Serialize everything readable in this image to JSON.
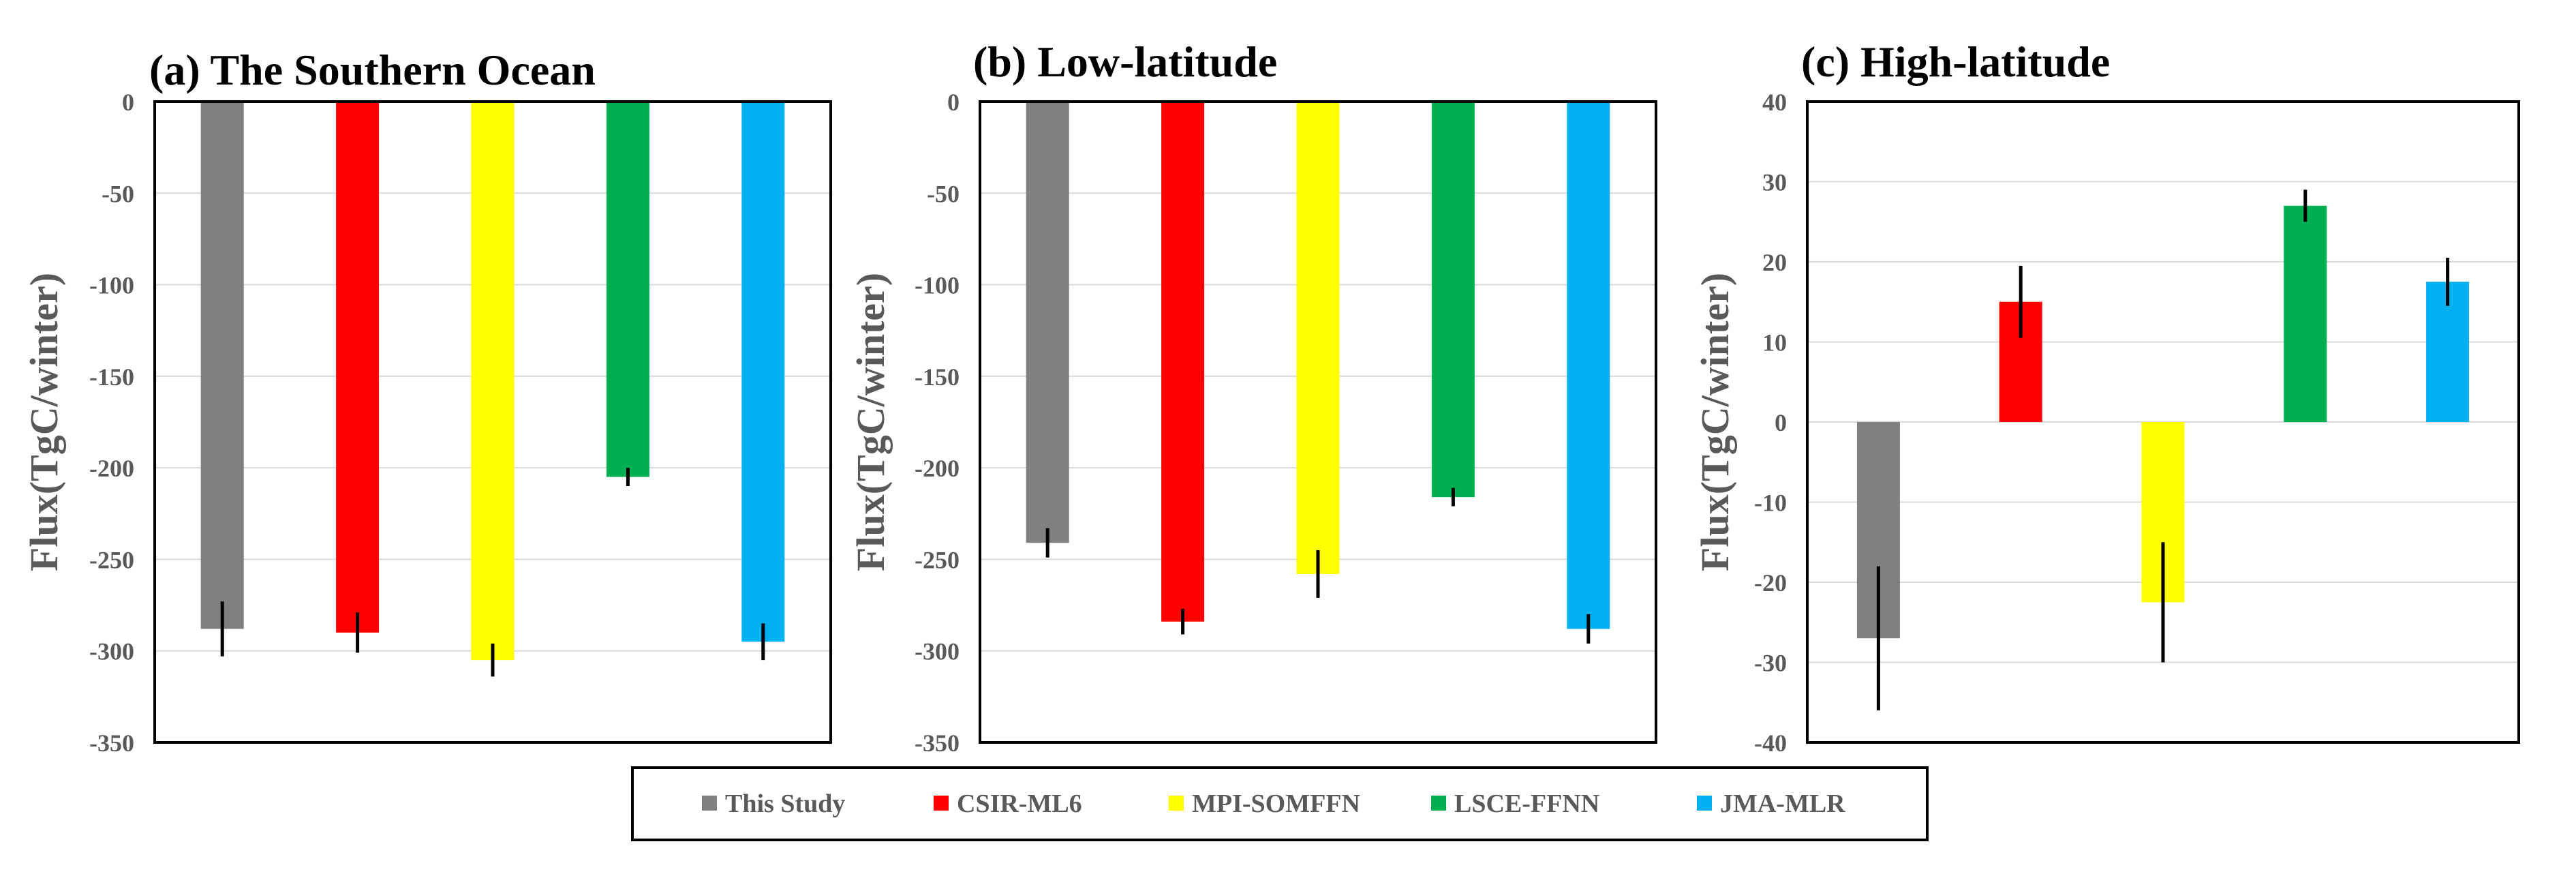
{
  "chart_data": [
    {
      "type": "bar",
      "title": "(a) The Southern  Ocean",
      "ylabel": "Flux(TgC/winter)",
      "ylim": [
        -350,
        0
      ],
      "ystep": 50,
      "grid": true,
      "categories": [
        "This Study",
        "CSIR-ML6",
        "MPI-SOMFFN",
        "LSCE-FFNN",
        "JMA-MLR"
      ],
      "values": [
        -288,
        -290,
        -305,
        -205,
        -295
      ],
      "errors": [
        15,
        11,
        9,
        5,
        10
      ]
    },
    {
      "type": "bar",
      "title": "(b) Low-latitude",
      "ylabel": "Flux(TgC/winter)",
      "ylim": [
        -350,
        0
      ],
      "ystep": 50,
      "grid": true,
      "categories": [
        "This Study",
        "CSIR-ML6",
        "MPI-SOMFFN",
        "LSCE-FFNN",
        "JMA-MLR"
      ],
      "values": [
        -241,
        -284,
        -258,
        -216,
        -288
      ],
      "errors": [
        8,
        7,
        13,
        5,
        8
      ]
    },
    {
      "type": "bar",
      "title": "(c) High-latitude",
      "ylabel": "Flux(TgC/winter)",
      "ylim": [
        -40,
        40
      ],
      "ystep": 10,
      "grid": true,
      "categories": [
        "This Study",
        "CSIR-ML6",
        "MPI-SOMFFN",
        "LSCE-FFNN",
        "JMA-MLR"
      ],
      "values": [
        -27,
        15,
        -22.5,
        27,
        17.5
      ],
      "errors": [
        9,
        4.5,
        7.5,
        2,
        3
      ]
    }
  ],
  "legend": {
    "placement": "bottom",
    "items": [
      {
        "label": "This Study",
        "color": "#808080"
      },
      {
        "label": "CSIR-ML6",
        "color": "#ff0000"
      },
      {
        "label": "MPI-SOMFFN",
        "color": "#ffff00"
      },
      {
        "label": "LSCE-FFNN",
        "color": "#00b050"
      },
      {
        "label": "JMA-MLR",
        "color": "#00b0f0"
      }
    ]
  },
  "colors": {
    "gridline": "#d9d9d9",
    "axis_frame": "#000000",
    "error_bar": "#000000"
  }
}
